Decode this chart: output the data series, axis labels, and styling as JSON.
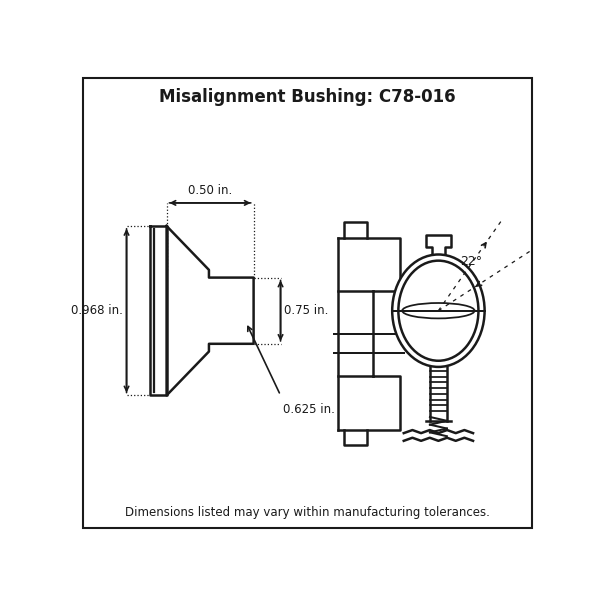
{
  "title": "Misalignment Bushing: C78-016",
  "title_fontsize": 12,
  "title_bold": true,
  "footer": "Dimensions listed may vary within manufacturing tolerances.",
  "footer_fontsize": 8.5,
  "bg_color": "#ffffff",
  "border_color": "#000000",
  "line_color": "#1a1a1a",
  "dim_0_50": "0.50 in.",
  "dim_0_968": "0.968 in.",
  "dim_0_75": "0.75 in.",
  "dim_0_625": "0.625 in.",
  "dim_22": "22°"
}
